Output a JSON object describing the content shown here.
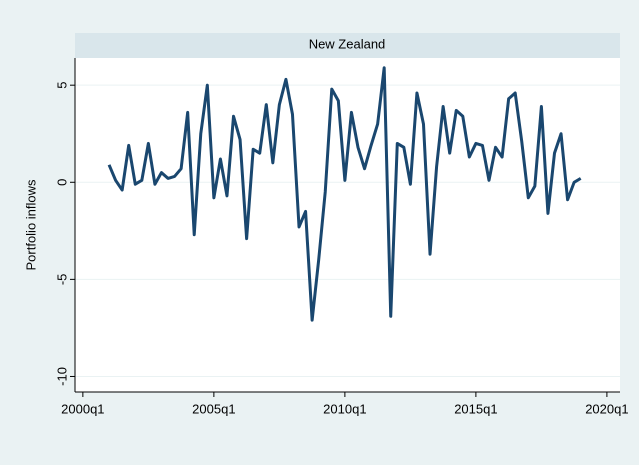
{
  "chart_data": {
    "type": "line",
    "title": "New Zealand",
    "y_label": "Portfolio inflows",
    "x": [
      164,
      165,
      166,
      167,
      168,
      169,
      170,
      171,
      172,
      173,
      174,
      175,
      176,
      177,
      178,
      179,
      180,
      181,
      182,
      183,
      184,
      185,
      186,
      187,
      188,
      189,
      190,
      191,
      192,
      193,
      194,
      195,
      196,
      197,
      198,
      199,
      200,
      201,
      202,
      203,
      204,
      205,
      206,
      207,
      208,
      209,
      210,
      211,
      212,
      213,
      214,
      215,
      216,
      217,
      218,
      219,
      220,
      221,
      222,
      223,
      224,
      225,
      226,
      227,
      228,
      229,
      230,
      231,
      232,
      233,
      234,
      235,
      236
    ],
    "series": [
      {
        "name": "Portfolio inflows",
        "color": "#1a476f",
        "values": [
          0.9,
          0.1,
          -0.4,
          1.9,
          -0.1,
          0.1,
          2.0,
          -0.1,
          0.5,
          0.2,
          0.3,
          0.7,
          3.6,
          -2.7,
          2.5,
          5.0,
          -0.8,
          1.2,
          -0.7,
          3.4,
          2.2,
          -2.9,
          1.7,
          1.5,
          4.0,
          1.0,
          4.0,
          5.3,
          3.5,
          -2.3,
          -1.5,
          -7.1,
          -4.0,
          -0.5,
          4.8,
          4.2,
          0.1,
          3.6,
          1.8,
          0.7,
          1.9,
          3.0,
          5.9,
          -6.9,
          2.0,
          1.8,
          -0.1,
          4.6,
          3.0,
          -3.7,
          0.8,
          3.9,
          1.5,
          3.7,
          3.4,
          1.3,
          2.0,
          1.9,
          0.1,
          1.8,
          1.3,
          4.3,
          4.6,
          2.1,
          -0.8,
          -0.2,
          3.9,
          -1.6,
          1.5,
          2.5,
          -0.9,
          0.0,
          0.2
        ]
      }
    ],
    "xlim": [
      158.8,
      242
    ],
    "xticks": [
      {
        "value": 160,
        "label": "2000q1"
      },
      {
        "value": 180,
        "label": "2005q1"
      },
      {
        "value": 200,
        "label": "2010q1"
      },
      {
        "value": 220,
        "label": "2015q1"
      },
      {
        "value": 240,
        "label": "2020q1"
      }
    ],
    "ylim": [
      -10.8,
      6.4
    ],
    "yticks": [
      -10,
      -5,
      0,
      5
    ],
    "grid": true
  }
}
